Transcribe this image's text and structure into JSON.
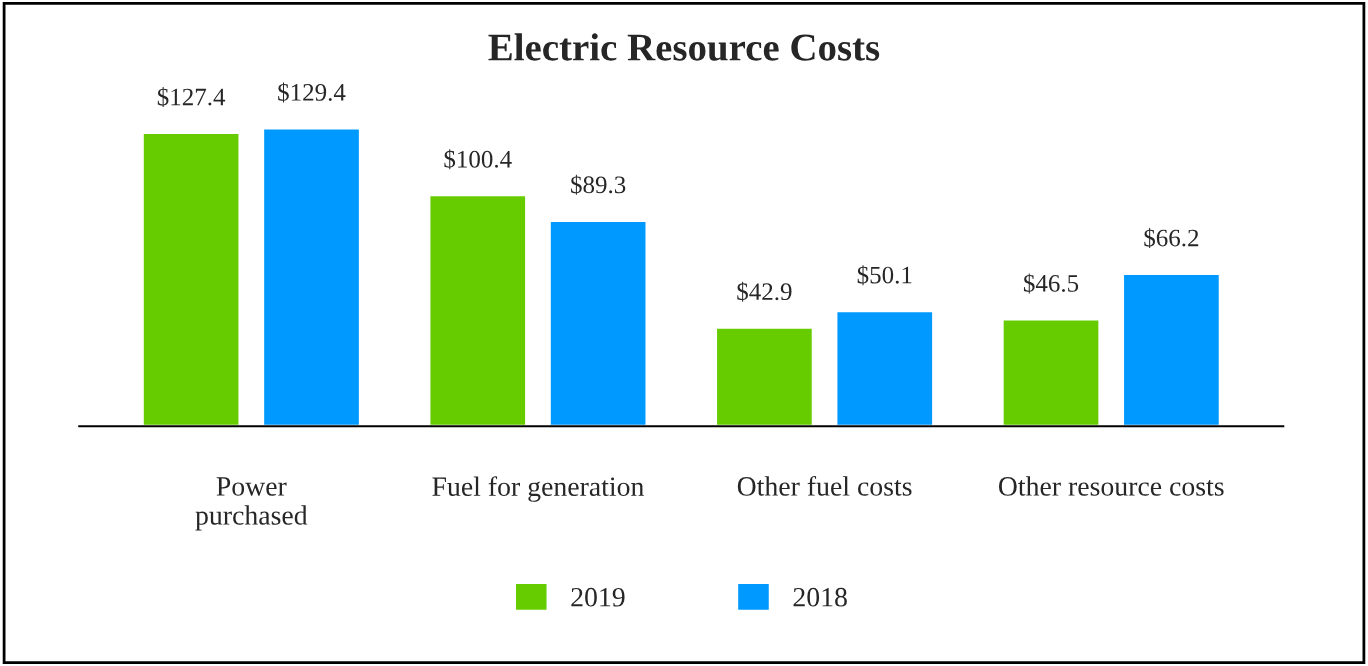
{
  "chart_data": {
    "type": "bar",
    "title": "Electric Resource Costs",
    "categories": [
      "Power\npurchased",
      "Fuel for generation",
      "Other fuel costs",
      "Other resource costs"
    ],
    "series": [
      {
        "name": "2019",
        "color": "#66cc00",
        "values": [
          127.4,
          100.4,
          42.9,
          46.5
        ],
        "value_labels": [
          "$127.4",
          "$100.4",
          "$42.9",
          "$46.5"
        ]
      },
      {
        "name": "2018",
        "color": "#0099ff",
        "values": [
          129.4,
          89.3,
          50.1,
          66.2
        ],
        "value_labels": [
          "$129.4",
          "$89.3",
          "$50.1",
          "$66.2"
        ]
      }
    ],
    "legend": "bottom",
    "grid": false
  }
}
